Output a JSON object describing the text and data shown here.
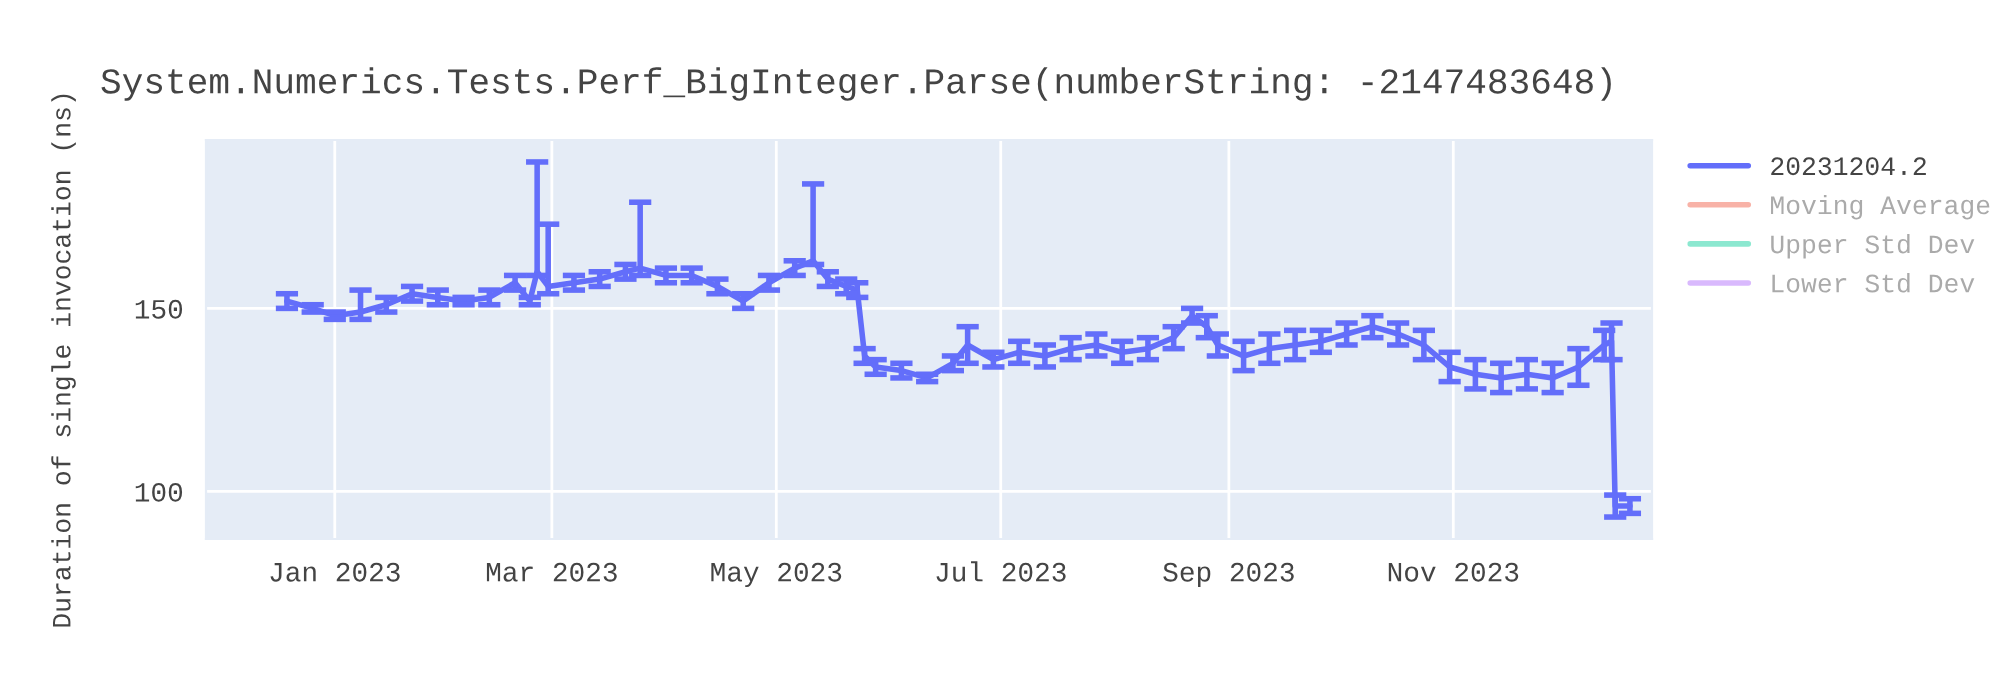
{
  "chart_data": {
    "type": "line",
    "title": "System.Numerics.Tests.Perf_BigInteger.Parse(numberString: -2147483648)",
    "ylabel": "Duration of single invocation (ns)",
    "xlim": [
      "2022-11-27",
      "2023-12-25"
    ],
    "xticks": [
      {
        "value": "2023-01-01",
        "label": "Jan 2023"
      },
      {
        "value": "2023-03-01",
        "label": "Mar 2023"
      },
      {
        "value": "2023-05-01",
        "label": "May 2023"
      },
      {
        "value": "2023-07-01",
        "label": "Jul 2023"
      },
      {
        "value": "2023-09-01",
        "label": "Sep 2023"
      },
      {
        "value": "2023-11-01",
        "label": "Nov 2023"
      }
    ],
    "ylim": [
      87,
      196
    ],
    "yticks": [
      100,
      150
    ],
    "grid": true,
    "legend": "top right",
    "x": [
      "2022-12-19",
      "2022-12-26",
      "2023-01-01",
      "2023-01-08",
      "2023-01-15",
      "2023-01-22",
      "2023-01-29",
      "2023-02-05",
      "2023-02-12",
      "2023-02-19",
      "2023-02-23",
      "2023-02-25",
      "2023-02-28",
      "2023-03-07",
      "2023-03-14",
      "2023-03-21",
      "2023-03-25",
      "2023-04-01",
      "2023-04-08",
      "2023-04-15",
      "2023-04-22",
      "2023-04-29",
      "2023-05-06",
      "2023-05-11",
      "2023-05-15",
      "2023-05-20",
      "2023-05-23",
      "2023-05-25",
      "2023-05-28",
      "2023-06-04",
      "2023-06-11",
      "2023-06-18",
      "2023-06-22",
      "2023-06-29",
      "2023-07-06",
      "2023-07-13",
      "2023-07-20",
      "2023-07-27",
      "2023-08-03",
      "2023-08-10",
      "2023-08-17",
      "2023-08-22",
      "2023-08-26",
      "2023-08-29",
      "2023-09-05",
      "2023-09-12",
      "2023-09-19",
      "2023-09-26",
      "2023-10-03",
      "2023-10-10",
      "2023-10-17",
      "2023-10-24",
      "2023-10-31",
      "2023-11-07",
      "2023-11-14",
      "2023-11-21",
      "2023-11-28",
      "2023-12-05",
      "2023-12-12",
      "2023-12-14",
      "2023-12-15",
      "2023-12-19"
    ],
    "series": [
      {
        "name": "20231204.2",
        "color": "#636efa",
        "values": [
          152,
          150,
          148,
          149,
          151,
          154,
          153,
          152,
          153,
          157,
          152,
          160,
          156,
          157,
          158,
          160,
          161,
          159,
          159,
          156,
          152,
          157,
          161,
          163,
          158,
          156,
          155,
          137,
          134,
          133,
          131,
          135,
          140,
          136,
          138,
          137,
          139,
          140,
          138,
          139,
          142,
          148,
          145,
          140,
          137,
          139,
          140,
          141,
          143,
          145,
          143,
          140,
          134,
          132,
          131,
          132,
          131,
          134,
          140,
          141,
          96,
          96
        ],
        "errors": [
          2,
          1,
          1,
          [
            147,
            155
          ],
          2,
          2,
          2,
          1,
          2,
          2,
          1,
          [
            159,
            190
          ],
          [
            154,
            173
          ],
          2,
          2,
          2,
          [
            159,
            179
          ],
          2,
          2,
          2,
          2,
          2,
          2,
          [
            162,
            184
          ],
          2,
          2,
          2,
          2,
          2,
          2,
          1,
          2,
          5,
          2,
          3,
          3,
          3,
          3,
          3,
          3,
          3,
          2,
          3,
          3,
          4,
          4,
          4,
          3,
          3,
          3,
          3,
          4,
          4,
          4,
          4,
          4,
          4,
          5,
          4,
          5,
          3,
          2
        ]
      },
      {
        "name": "Moving Average",
        "color": "#ef553b",
        "values": [
          null,
          null,
          null,
          null,
          null,
          null,
          null,
          null,
          null,
          null,
          null,
          null,
          null,
          null,
          null,
          null,
          null,
          null,
          null,
          null,
          null,
          null,
          null,
          null,
          null,
          null,
          null,
          null,
          null,
          null,
          null,
          null,
          null,
          null,
          null,
          null,
          null,
          null,
          null,
          null,
          null,
          null,
          null,
          null,
          null,
          null,
          null,
          null,
          null,
          null,
          null,
          null,
          null,
          null,
          null,
          null,
          null,
          null,
          null,
          null,
          null,
          null
        ]
      },
      {
        "name": "Upper Std Dev",
        "color": "#00cc96",
        "values": [
          null,
          null,
          null,
          null,
          null,
          null,
          null,
          null,
          null,
          null,
          null,
          null,
          null,
          null,
          null,
          null,
          null,
          null,
          null,
          null,
          null,
          null,
          null,
          null,
          null,
          null,
          null,
          null,
          null,
          null,
          null,
          null,
          null,
          null,
          null,
          null,
          null,
          null,
          null,
          null,
          null,
          null,
          null,
          null,
          null,
          null,
          null,
          null,
          null,
          null,
          null,
          null,
          null,
          null,
          null,
          null,
          null,
          null,
          null,
          null,
          null,
          null
        ]
      },
      {
        "name": "Lower Std Dev",
        "color": "#ab63fa",
        "values": [
          null,
          null,
          null,
          null,
          null,
          null,
          null,
          null,
          null,
          null,
          null,
          null,
          null,
          null,
          null,
          null,
          null,
          null,
          null,
          null,
          null,
          null,
          null,
          null,
          null,
          null,
          null,
          null,
          null,
          null,
          null,
          null,
          null,
          null,
          null,
          null,
          null,
          null,
          null,
          null,
          null,
          null,
          null,
          null,
          null,
          null,
          null,
          null,
          null,
          null,
          null,
          null,
          null,
          null,
          null,
          null,
          null,
          null,
          null,
          null,
          null,
          null
        ]
      }
    ]
  }
}
